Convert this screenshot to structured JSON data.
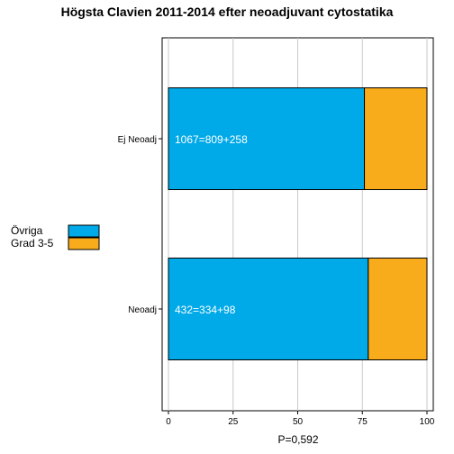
{
  "chart_data": {
    "type": "bar",
    "orientation": "horizontal",
    "stacked": true,
    "title": "Högsta Clavien 2011-2014 efter neoadjuvant cytostatika",
    "xlabel": "P=0,592",
    "ylabel": "",
    "categories": [
      "Ej Neoadj",
      "Neoadj"
    ],
    "series": [
      {
        "name": "Övriga",
        "color": "#00a9e8",
        "values": [
          75.8,
          77.3
        ]
      },
      {
        "name": "Grad 3-5",
        "color": "#f9ac1b",
        "values": [
          24.2,
          22.7
        ]
      }
    ],
    "bar_labels": [
      "1067=809+258",
      "432=334+98"
    ],
    "xlim": [
      0,
      100
    ],
    "xticks": [
      0,
      25,
      50,
      75,
      100
    ],
    "grid": true,
    "legend_position": "left"
  }
}
